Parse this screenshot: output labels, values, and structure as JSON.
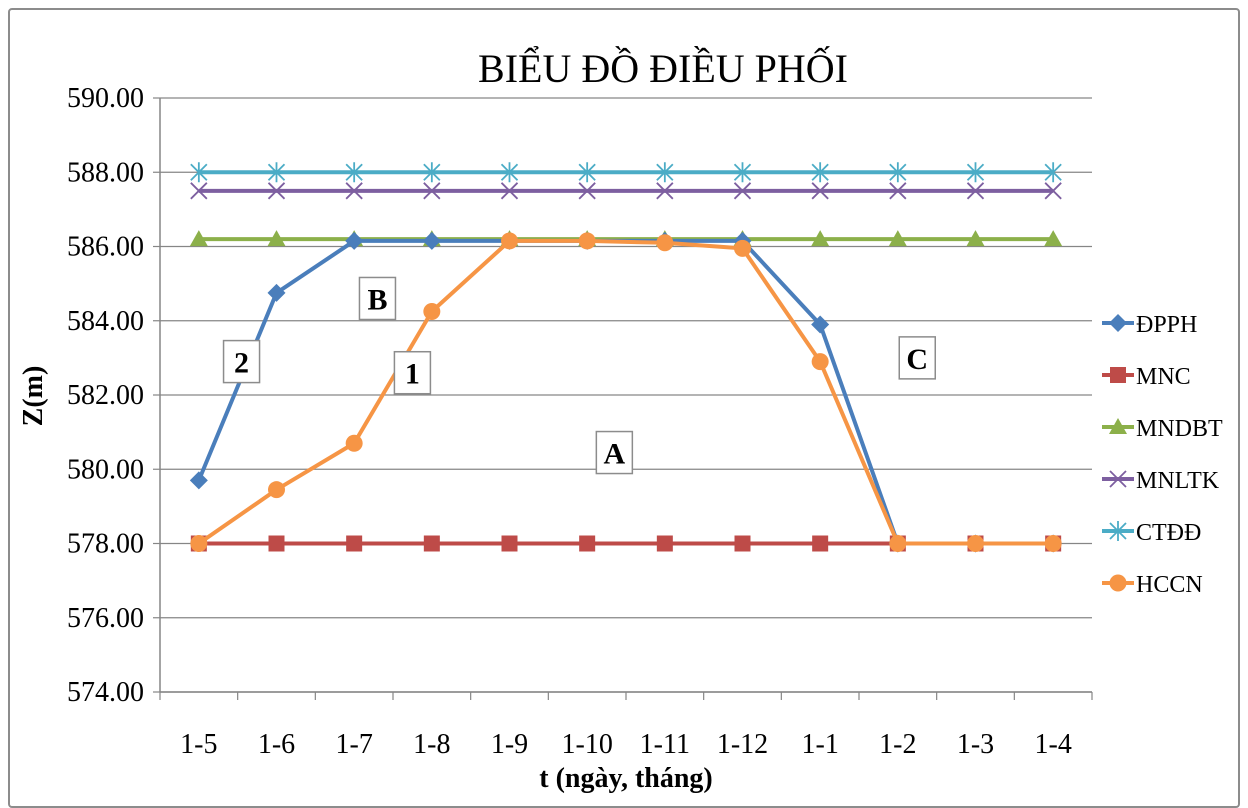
{
  "chart_data": {
    "type": "line",
    "title": "BIỂU ĐỒ ĐIỀU PHỐI",
    "xlabel": "t (ngày, tháng)",
    "ylabel": "Z(m)",
    "ylim": [
      574,
      590
    ],
    "ytick_step": 2,
    "ytick_labels": [
      "574.00",
      "576.00",
      "578.00",
      "580.00",
      "582.00",
      "584.00",
      "586.00",
      "588.00",
      "590.00"
    ],
    "grid": true,
    "legend_position": "right",
    "categories": [
      "1-5",
      "1-6",
      "1-7",
      "1-8",
      "1-9",
      "1-10",
      "1-11",
      "1-12",
      "1-1",
      "1-2",
      "1-3",
      "1-4"
    ],
    "series": [
      {
        "name": "ĐPPH",
        "color": "#4a7ebb",
        "marker": "diamond",
        "values": [
          579.7,
          584.75,
          586.15,
          586.15,
          586.15,
          586.15,
          586.15,
          586.15,
          583.9,
          578.0,
          578.0,
          578.0
        ]
      },
      {
        "name": "MNC",
        "color": "#be4b48",
        "marker": "square",
        "values": [
          578,
          578,
          578,
          578,
          578,
          578,
          578,
          578,
          578,
          578,
          578,
          578
        ]
      },
      {
        "name": "MNDBT",
        "color": "#8cb04a",
        "marker": "triangle",
        "values": [
          586.2,
          586.2,
          586.2,
          586.2,
          586.2,
          586.2,
          586.2,
          586.2,
          586.2,
          586.2,
          586.2,
          586.2
        ]
      },
      {
        "name": "MNLTK",
        "color": "#7d5fa0",
        "marker": "x",
        "values": [
          587.5,
          587.5,
          587.5,
          587.5,
          587.5,
          587.5,
          587.5,
          587.5,
          587.5,
          587.5,
          587.5,
          587.5
        ]
      },
      {
        "name": "CTĐĐ",
        "color": "#4bacc6",
        "marker": "star",
        "values": [
          588,
          588,
          588,
          588,
          588,
          588,
          588,
          588,
          588,
          588,
          588,
          588
        ]
      },
      {
        "name": "HCCN",
        "color": "#f69545",
        "marker": "circle",
        "values": [
          578.0,
          579.45,
          580.7,
          584.25,
          586.15,
          586.15,
          586.1,
          585.95,
          582.9,
          578.0,
          578.0,
          578.0
        ]
      }
    ],
    "annotations": [
      "2",
      "1",
      "B",
      "A",
      "C"
    ]
  }
}
